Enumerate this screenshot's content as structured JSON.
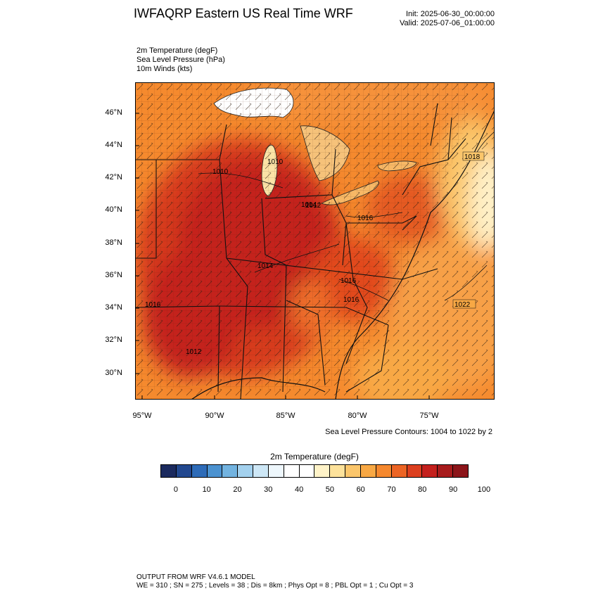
{
  "header": {
    "title": "IWFAQRP Eastern US Real Time WRF",
    "init": "Init: 2025-06-30_00:00:00",
    "valid": "Valid: 2025-07-06_01:00:00"
  },
  "fields": [
    "2m Temperature   (degF)",
    "Sea Level Pressure   (hPa)",
    "10m Winds   (kts)"
  ],
  "map": {
    "lat_labels": [
      "46°N",
      "44°N",
      "42°N",
      "40°N",
      "38°N",
      "36°N",
      "34°N",
      "32°N",
      "30°N"
    ],
    "lon_labels": [
      "95°W",
      "90°W",
      "85°W",
      "80°W",
      "75°W"
    ],
    "pressure_labels": [
      "1010",
      "1010",
      "1012",
      "1014",
      "1016",
      "1016",
      "1016",
      "1016",
      "1018",
      "1022",
      "1012",
      "1014"
    ],
    "colors": {
      "hot": "#b22222",
      "warm": "#e24a1f",
      "orange": "#f58a2e",
      "light_orange": "#f7ad53",
      "pale": "#fde5a6",
      "white": "#ffffff",
      "lake": "#fbe3a6"
    }
  },
  "contour_note": "Sea Level Pressure Contours: 1004 to 1022 by 2",
  "colorbar": {
    "title": "2m Temperature   (degF)",
    "ticks": [
      "0",
      "10",
      "20",
      "30",
      "40",
      "50",
      "60",
      "70",
      "80",
      "90",
      "100"
    ],
    "colors": [
      "#1b2a5e",
      "#22488f",
      "#2d6bb8",
      "#4b92d0",
      "#72b3e0",
      "#a3d1ee",
      "#cde7f6",
      "#eef7fc",
      "#ffffff",
      "#ffffff",
      "#fff3c8",
      "#fde29b",
      "#fbc66b",
      "#f8a844",
      "#f5882e",
      "#ec6424",
      "#dc3f1f",
      "#c4201d",
      "#a71b1c",
      "#8c151a"
    ]
  },
  "footer": {
    "line1": "OUTPUT FROM WRF V4.6.1 MODEL",
    "line2": "WE = 310 ; SN = 275 ; Levels = 38 ; Dis = 8km ; Phys Opt = 8 ; PBL Opt = 1 ; Cu Opt = 3"
  }
}
